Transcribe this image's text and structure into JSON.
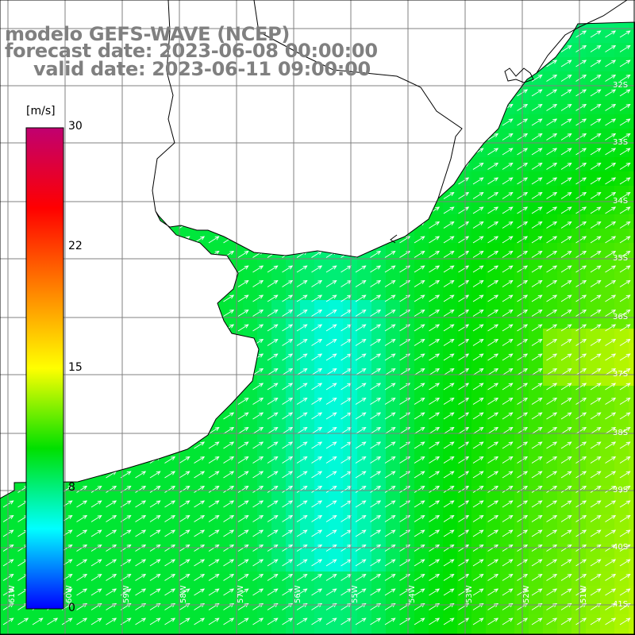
{
  "title": {
    "model": "modelo GEFS-WAVE (NCEP)",
    "forecast": "forecast date: 2023-06-08 00:00:00",
    "valid": "valid date: 2023-06-11 09:00:00"
  },
  "colorbar": {
    "unit": "[m/s]",
    "ticks": [
      "30",
      "22",
      "15",
      "8",
      "0"
    ],
    "min": 0,
    "max": 30,
    "colors": [
      "#0000ff",
      "#00ffff",
      "#00e000",
      "#ffff00",
      "#ff8000",
      "#ff0000",
      "#c00070"
    ]
  },
  "map": {
    "lat_labels": [
      "32S",
      "33S",
      "34S",
      "35S",
      "36S",
      "37S",
      "38S",
      "39S",
      "40S",
      "41S"
    ],
    "lon_labels": [
      "61W",
      "60W",
      "59W",
      "58W",
      "57W",
      "56W",
      "55W",
      "54W",
      "53W",
      "52W",
      "51W"
    ],
    "wind_direction": "southwest",
    "colors": {
      "land": "#ffffff",
      "coast": "#000000",
      "grid": "#808080",
      "arrow": "#ffffff"
    }
  }
}
